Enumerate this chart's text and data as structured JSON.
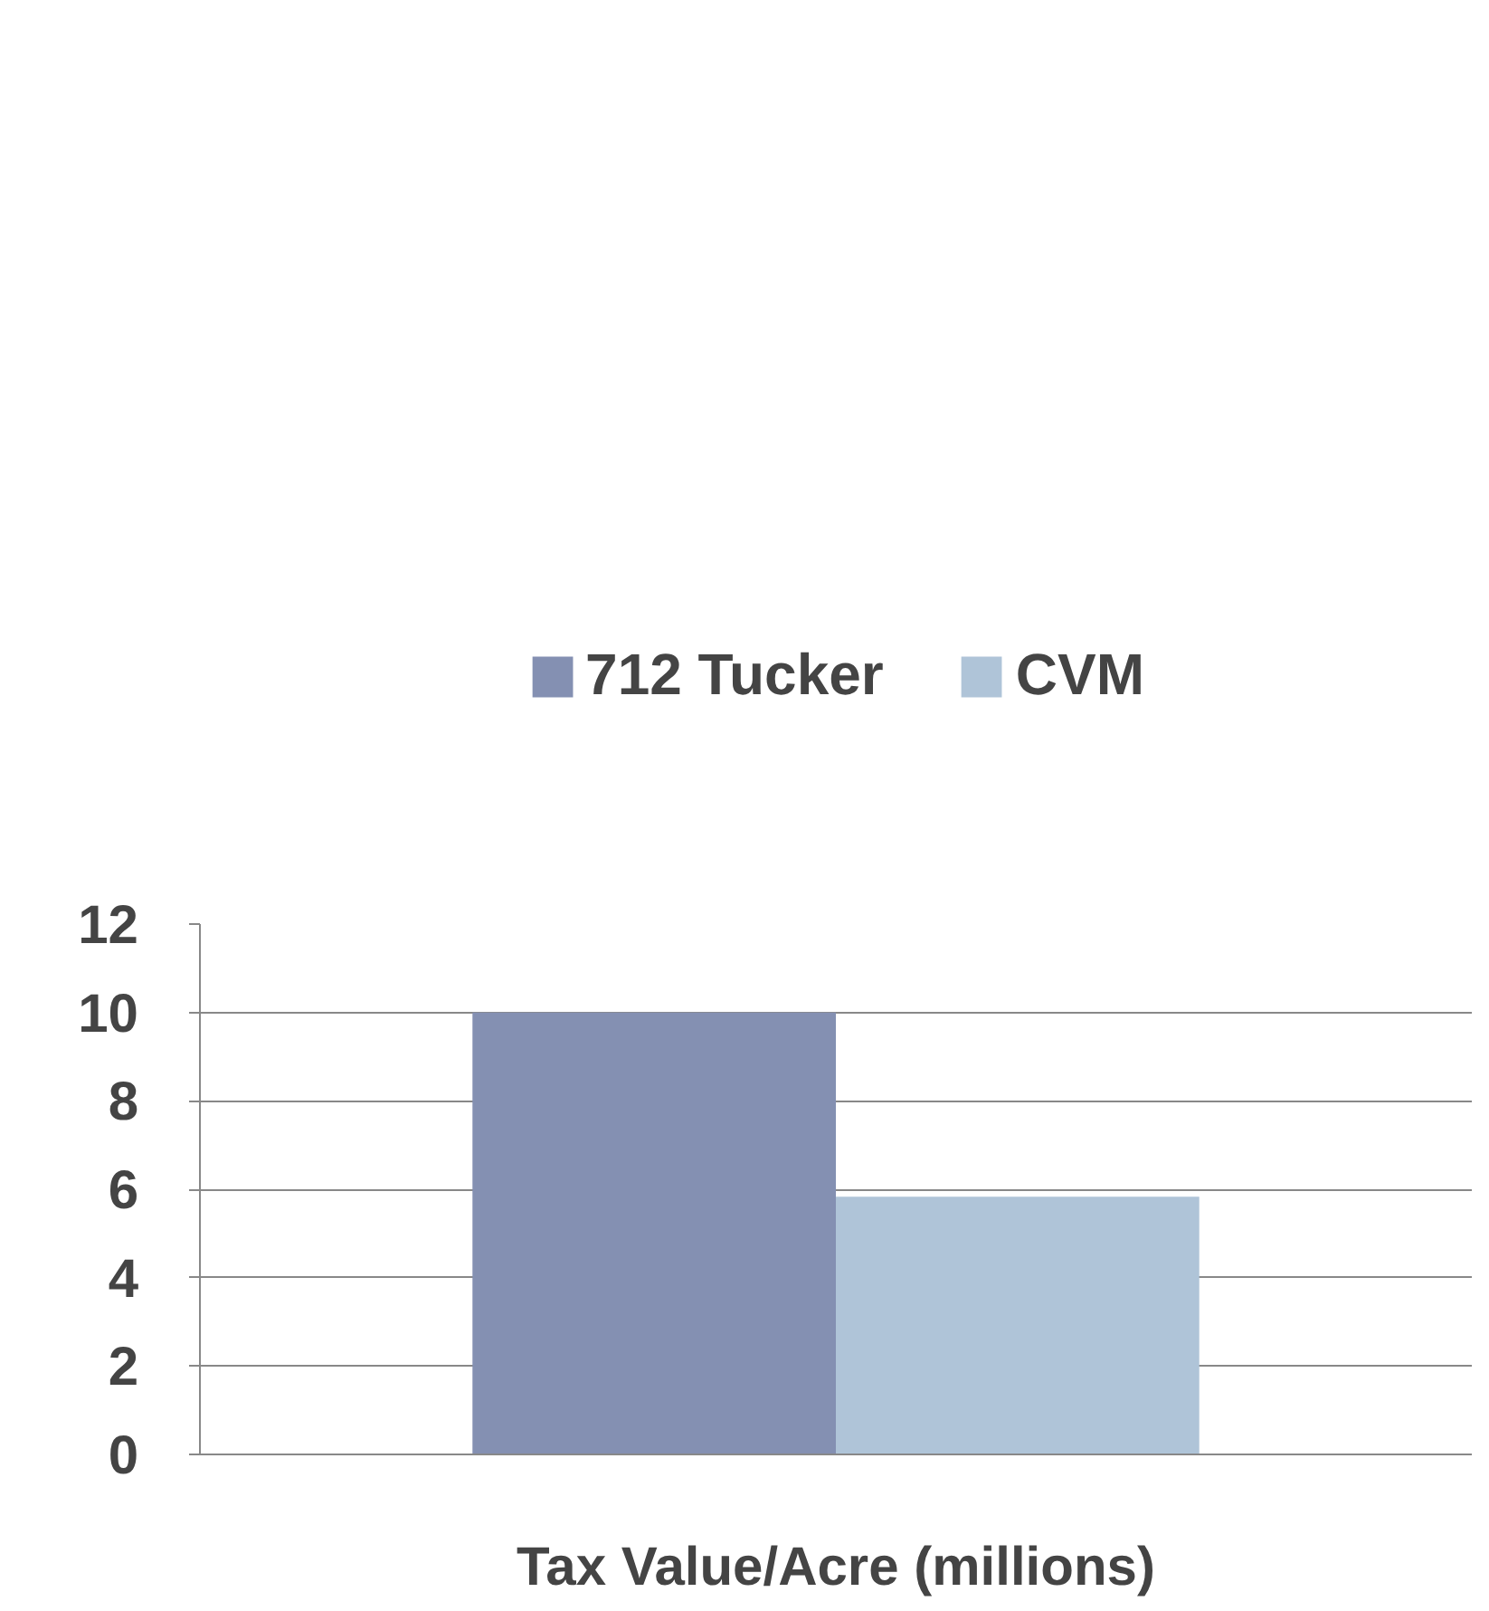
{
  "chart_data": {
    "type": "bar",
    "categories": [
      "Tax Value/Acre (millions)"
    ],
    "series": [
      {
        "name": "712 Tucker",
        "color": "#8490b2",
        "values": [
          10.0
        ]
      },
      {
        "name": "CVM",
        "color": "#afc4d8",
        "values": [
          5.83
        ]
      }
    ],
    "ylim": [
      0,
      12
    ],
    "yticks": [
      0,
      2,
      4,
      6,
      8,
      10,
      12
    ],
    "grid": "y",
    "legend": "top"
  }
}
